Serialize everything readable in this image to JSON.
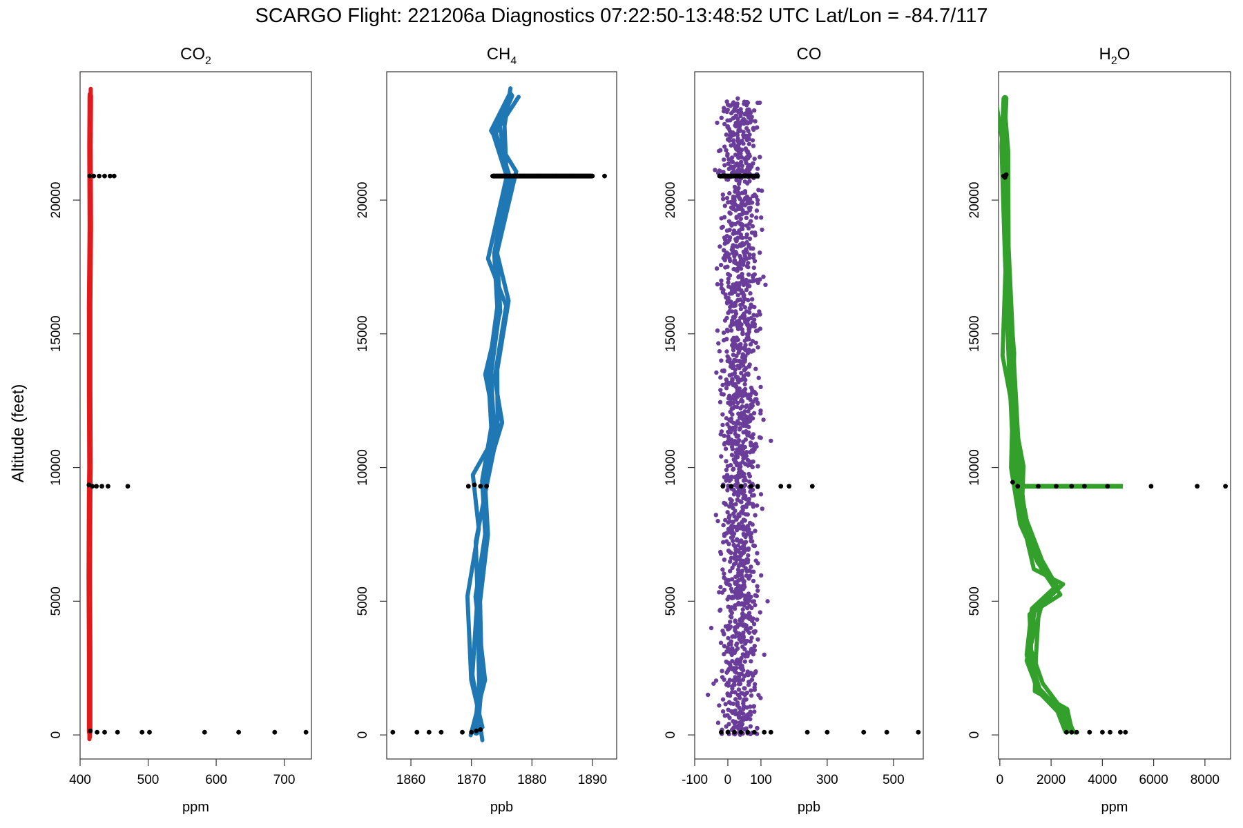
{
  "figure": {
    "suptitle": "SCARGO Flight: 221206a  Diagnostics  07:22:50-13:48:52 UTC  Lat/Lon = -84.7/117",
    "ylabel": "Altitude (feet)"
  },
  "chart_data": [
    {
      "type": "scatter",
      "title": "CO2",
      "title_main": "CO",
      "title_sub": "2",
      "xlabel": "ppm",
      "ylabel": "Altitude (feet)",
      "xlim": [
        400,
        740
      ],
      "ylim": [
        -900,
        24800
      ],
      "x_ticks": [
        400,
        500,
        600,
        700
      ],
      "y_ticks": [
        0,
        5000,
        10000,
        15000,
        20000
      ],
      "color": "#e31a1c",
      "flag_color": "#000000",
      "series": [
        {
          "name": "profile",
          "x": [
            414,
            414,
            413.5,
            414,
            414.5,
            414,
            414,
            415,
            414.5,
            415
          ],
          "y": [
            100,
            3000,
            6000,
            9000,
            10000,
            13000,
            16000,
            19000,
            22000,
            23900
          ]
        },
        {
          "name": "flagged",
          "x": [
            415,
            425,
            436,
            455,
            491,
            502,
            583,
            633,
            686,
            732,
            413,
            418,
            424,
            432,
            441,
            470,
            414,
            420,
            428,
            436,
            444,
            450
          ],
          "y": [
            150,
            100,
            100,
            100,
            100,
            100,
            100,
            100,
            100,
            100,
            9350,
            9300,
            9300,
            9300,
            9300,
            9300,
            20900,
            20900,
            20900,
            20900,
            20900,
            20900
          ]
        }
      ]
    },
    {
      "type": "scatter",
      "title": "CH4",
      "title_main": "CH",
      "title_sub": "4",
      "xlabel": "ppb",
      "ylabel": "",
      "xlim": [
        1856,
        1894
      ],
      "ylim": [
        -900,
        24800
      ],
      "x_ticks": [
        1860,
        1870,
        1880,
        1890
      ],
      "y_ticks": [
        0,
        5000,
        10000,
        15000,
        20000
      ],
      "color": "#1f78b4",
      "flag_color": "#000000",
      "series": [
        {
          "name": "profile",
          "x": [
            1870.8,
            1871.5,
            1871.2,
            1872.5,
            1872,
            1873.5,
            1873,
            1874.5,
            1874,
            1876.2,
            1873.8,
            1876.5
          ],
          "y": [
            100,
            2000,
            5000,
            7500,
            9500,
            11500,
            13500,
            16000,
            18000,
            20800,
            22500,
            23900
          ]
        },
        {
          "name": "flagged",
          "x": [
            1857,
            1861,
            1863,
            1865,
            1868.5,
            1870,
            1870.8,
            1871.5,
            1869.5,
            1870.5,
            1871.5,
            1872.5,
            1873.5,
            1875,
            1878,
            1881,
            1884,
            1887,
            1890,
            1892
          ],
          "y": [
            100,
            100,
            100,
            100,
            100,
            100,
            150,
            200,
            9300,
            9350,
            9300,
            9300,
            20900,
            20900,
            20900,
            20900,
            20900,
            20900,
            20900,
            20900
          ]
        }
      ]
    },
    {
      "type": "scatter",
      "title": "CO",
      "title_main": "CO",
      "title_sub": "",
      "xlabel": "ppb",
      "ylabel": "",
      "xlim": [
        -100,
        590
      ],
      "ylim": [
        -900,
        24800
      ],
      "x_ticks": [
        -100,
        0,
        100,
        300,
        500
      ],
      "y_ticks": [
        0,
        5000,
        10000,
        15000,
        20000
      ],
      "color": "#6a3d9a",
      "flag_color": "#000000",
      "series": [
        {
          "name": "profile",
          "x": [
            -60,
            110,
            -50,
            120,
            -30,
            100,
            130,
            -20,
            80,
            -15,
            -10,
            90,
            45,
            40,
            35,
            30
          ],
          "y": [
            1500,
            3000,
            4000,
            5000,
            8000,
            9000,
            11000,
            14000,
            16000,
            19000,
            22000,
            20000,
            12000,
            6000,
            2000,
            23800
          ]
        },
        {
          "name": "flagged",
          "x": [
            -20,
            0,
            20,
            40,
            60,
            80,
            110,
            130,
            240,
            300,
            410,
            480,
            575,
            -15,
            10,
            40,
            70,
            90,
            160,
            185,
            255,
            -25,
            0,
            30,
            60,
            90
          ],
          "y": [
            100,
            100,
            100,
            100,
            100,
            100,
            100,
            100,
            100,
            100,
            100,
            100,
            100,
            9300,
            9300,
            9300,
            9300,
            9300,
            9300,
            9300,
            9300,
            20900,
            20900,
            20900,
            20900,
            20900
          ]
        }
      ]
    },
    {
      "type": "scatter",
      "title": "H2O",
      "title_main": "H",
      "title_sub": "2",
      "title_after": "O",
      "xlabel": "ppm",
      "ylabel": "",
      "xlim": [
        -50,
        9000
      ],
      "ylim": [
        -900,
        24800
      ],
      "x_ticks": [
        0,
        2000,
        4000,
        6000,
        8000
      ],
      "y_ticks": [
        0,
        5000,
        10000,
        15000,
        20000
      ],
      "color": "#33a02c",
      "flag_color": "#000000",
      "series": [
        {
          "name": "profile",
          "x": [
            2600,
            2300,
            1500,
            1100,
            1300,
            2200,
            1600,
            1000,
            600,
            400,
            250,
            120,
            200
          ],
          "y": [
            150,
            900,
            1700,
            3000,
            4700,
            5500,
            6500,
            8000,
            10000,
            14000,
            18000,
            22000,
            23800
          ]
        },
        {
          "name": "flagged",
          "x": [
            2600,
            2800,
            3000,
            3500,
            4000,
            4300,
            4700,
            4900,
            500,
            700,
            1500,
            2200,
            2800,
            3300,
            4200,
            5900,
            7700,
            8800,
            150,
            200,
            250
          ],
          "y": [
            100,
            100,
            100,
            100,
            100,
            100,
            100,
            100,
            9450,
            9300,
            9300,
            9300,
            9300,
            9300,
            9300,
            9300,
            9300,
            9300,
            20900,
            20850,
            20950
          ]
        }
      ]
    }
  ]
}
